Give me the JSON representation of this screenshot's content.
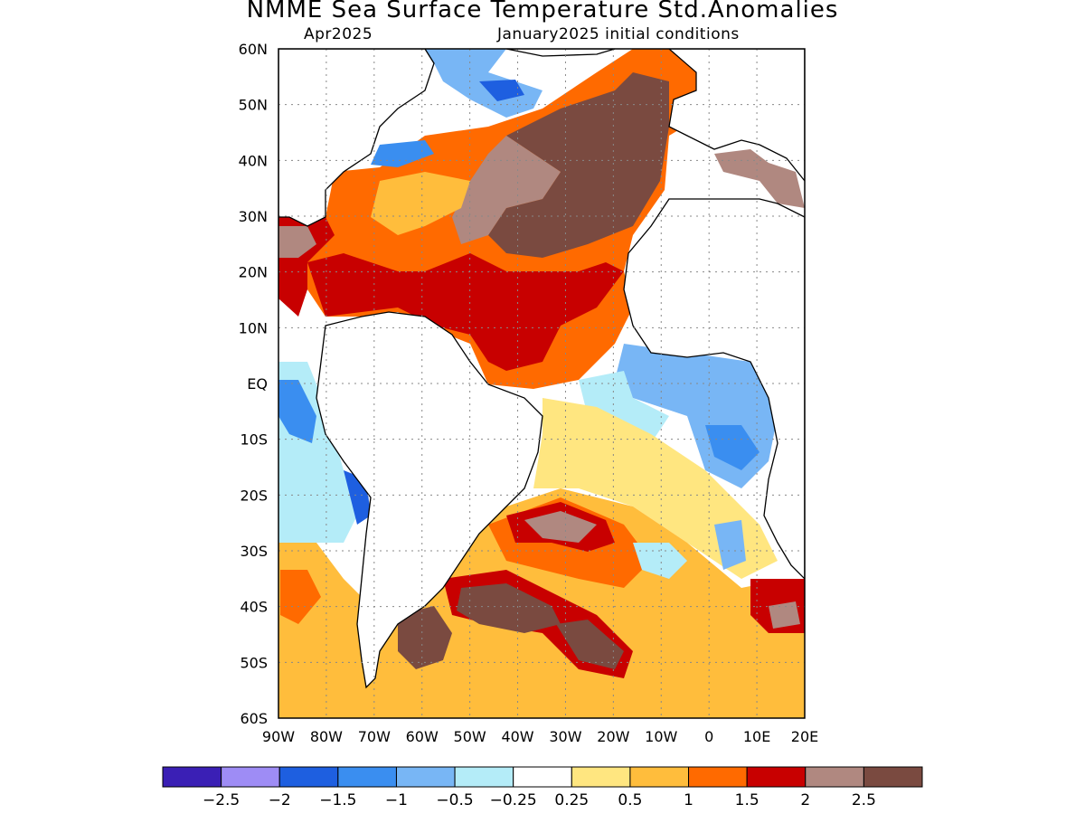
{
  "title": "NMME Sea Surface Temperature Std.Anomalies",
  "subtitle_left": "Apr2025",
  "subtitle_right": "January2025 initial conditions",
  "map": {
    "lon_range": [
      -90,
      20
    ],
    "lat_range": [
      -60,
      60
    ],
    "lat_labels": [
      "60N",
      "50N",
      "40N",
      "30N",
      "20N",
      "10N",
      "EQ",
      "10S",
      "20S",
      "30S",
      "40S",
      "50S",
      "60S"
    ],
    "lon_labels": [
      "90W",
      "80W",
      "70W",
      "60W",
      "50W",
      "40W",
      "30W",
      "20W",
      "10W",
      "0",
      "10E",
      "20E"
    ],
    "gridlines": "dotted"
  },
  "colorbar": {
    "colors": [
      "#3a1fb5",
      "#9e8cf5",
      "#1e5fe0",
      "#3a8ef0",
      "#78b6f5",
      "#b4ecf8",
      "#ffffff",
      "#ffe680",
      "#ffbd3c",
      "#ff6a00",
      "#c80000",
      "#b08880",
      "#7a4a40"
    ],
    "labels": [
      "-2.5",
      "-2",
      "-1.5",
      "-1",
      "-0.5",
      "-0.25",
      "0.25",
      "0.5",
      "1",
      "1.5",
      "2",
      "2.5"
    ]
  }
}
